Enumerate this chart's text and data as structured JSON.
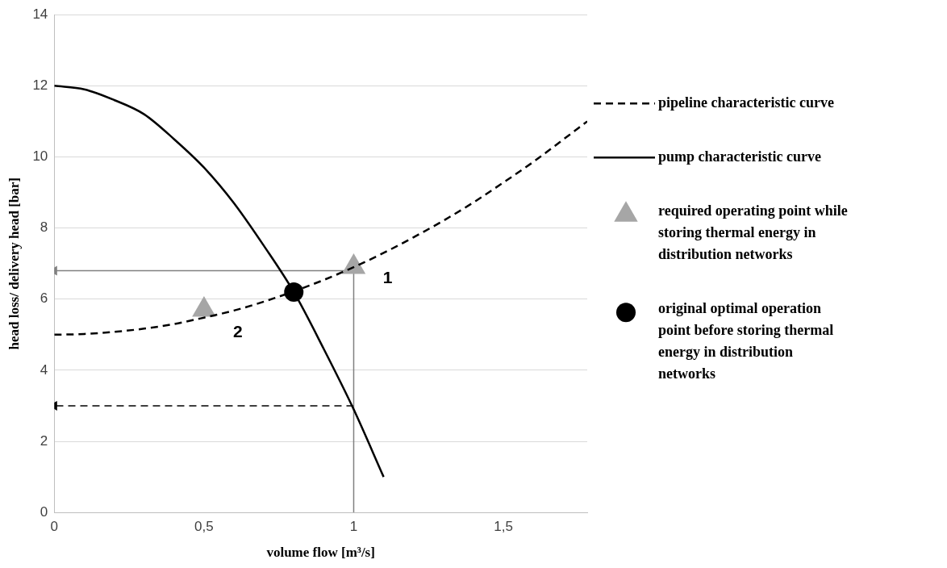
{
  "chart_data": {
    "type": "line",
    "xlabel": "volume flow [m³/s]",
    "ylabel": "head loss/ delivery head [bar]",
    "xlim": [
      0,
      1.78
    ],
    "xticks": [
      0,
      {
        "value": 0.5,
        "label": "0,5"
      },
      1,
      {
        "value": 1.5,
        "label": "1,5"
      }
    ],
    "ylim": [
      0,
      14
    ],
    "yticks": [
      0,
      2,
      4,
      6,
      8,
      10,
      12,
      14
    ],
    "grid": "y",
    "legend": "right",
    "series": [
      {
        "name": "pipeline characteristic curve",
        "line_style": "dashed",
        "color": "#000000",
        "x": [
          0,
          0.1,
          0.2,
          0.3,
          0.4,
          0.5,
          0.6,
          0.7,
          0.8,
          0.9,
          1.0,
          1.1,
          1.2,
          1.3,
          1.4,
          1.5,
          1.6,
          1.7,
          1.78
        ],
        "values": [
          5,
          5.02,
          5.08,
          5.17,
          5.3,
          5.48,
          5.68,
          5.93,
          6.22,
          6.54,
          6.9,
          7.3,
          7.74,
          8.21,
          8.72,
          9.28,
          9.86,
          10.49,
          11.0
        ]
      },
      {
        "name": "pump characteristic curve",
        "line_style": "solid",
        "color": "#000000",
        "x": [
          0,
          0.1,
          0.2,
          0.3,
          0.4,
          0.5,
          0.6,
          0.7,
          0.8,
          0.9,
          1.0,
          1.1
        ],
        "values": [
          12,
          11.9,
          11.6,
          11.2,
          10.5,
          9.7,
          8.7,
          7.5,
          6.2,
          4.6,
          2.9,
          1.0
        ]
      },
      {
        "name": "required operating point while storing thermal energy in distribution networks",
        "type": "scatter",
        "marker": "triangle",
        "color": "#a6a6a6",
        "x": [
          1,
          0.5
        ],
        "values": [
          6.9,
          5.7
        ]
      },
      {
        "name": "original optimal operation point before storing thermal energy in distribution networks",
        "type": "scatter",
        "marker": "circle",
        "color": "#000000",
        "x": [
          0.8
        ],
        "values": [
          6.2
        ]
      },
      {
        "line_style": "solid",
        "color": "#808080",
        "x": [
          1,
          1
        ],
        "values": [
          6.8,
          0
        ]
      },
      {
        "line_style": "solid",
        "marker": "triangle",
        "color": "#808080",
        "x": [
          1,
          0
        ],
        "values": [
          6.8,
          6.8
        ]
      },
      {
        "line_style": "dashed",
        "marker": "triangle",
        "color": "#000000",
        "x": [
          1,
          0
        ],
        "values": [
          3.0,
          3.0
        ]
      }
    ],
    "annotations": [
      "1",
      "2"
    ]
  }
}
